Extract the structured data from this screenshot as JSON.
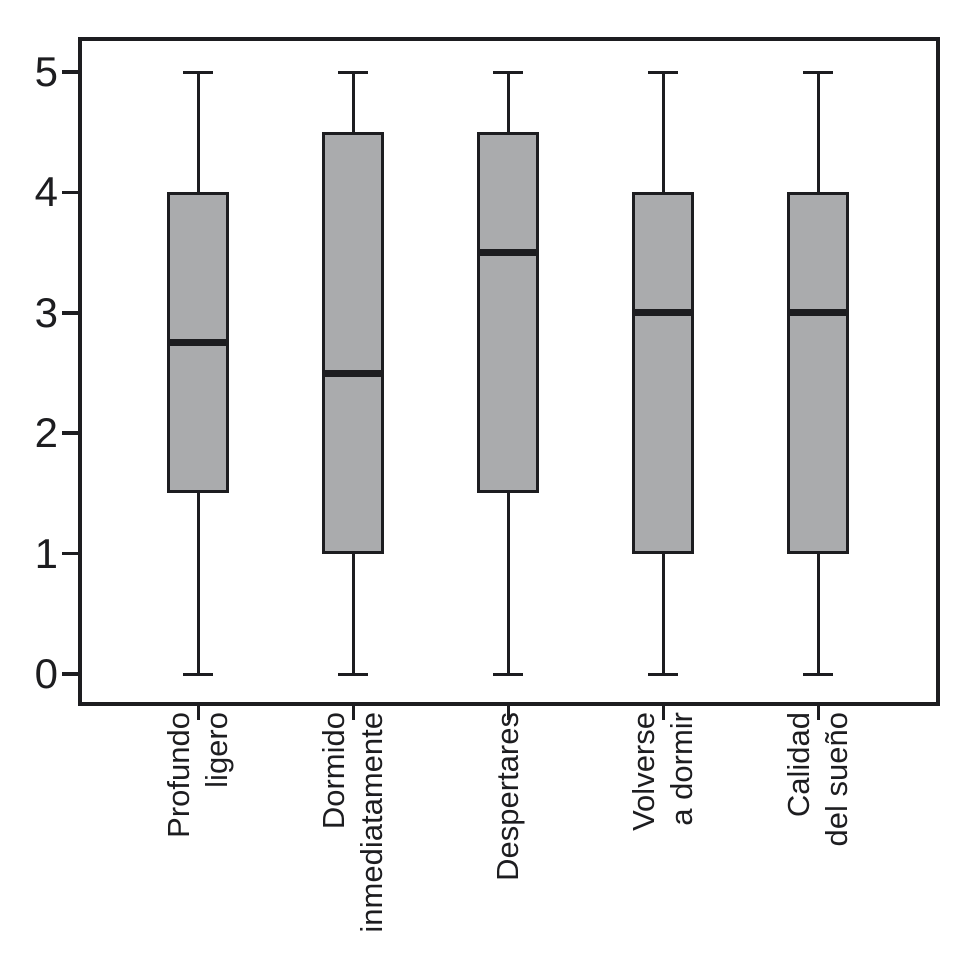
{
  "chart_data": {
    "type": "boxplot",
    "title": "",
    "xlabel": "",
    "ylabel": "",
    "categories": [
      "Profundo\nligero",
      "Dormido\ninmediatamente",
      "Despertares",
      "Volverse\na dormir",
      "Calidad\ndel sueño"
    ],
    "boxes": [
      {
        "category": "Profundo ligero",
        "whisker_low": 0,
        "q1": 1.5,
        "median": 2.75,
        "q3": 4.0,
        "whisker_high": 5
      },
      {
        "category": "Dormido inmediatamente",
        "whisker_low": 0,
        "q1": 1.0,
        "median": 2.5,
        "q3": 4.5,
        "whisker_high": 5
      },
      {
        "category": "Despertares",
        "whisker_low": 0,
        "q1": 1.5,
        "median": 3.5,
        "q3": 4.5,
        "whisker_high": 5
      },
      {
        "category": "Volverse a dormir",
        "whisker_low": 0,
        "q1": 1.0,
        "median": 3.0,
        "q3": 4.0,
        "whisker_high": 5
      },
      {
        "category": "Calidad del sueño",
        "whisker_low": 0,
        "q1": 1.0,
        "median": 3.0,
        "q3": 4.0,
        "whisker_high": 5
      }
    ],
    "yticks": [
      0,
      1,
      2,
      3,
      4,
      5
    ],
    "ytick_labels": [
      "0",
      "1",
      "2",
      "3",
      "4",
      "5"
    ],
    "ylim": [
      -0.28,
      5.3
    ],
    "grid": false,
    "legend": null,
    "colors": {
      "box_fill": "#aaabad",
      "stroke": "#1d1d20",
      "background": "#ffffff"
    }
  }
}
